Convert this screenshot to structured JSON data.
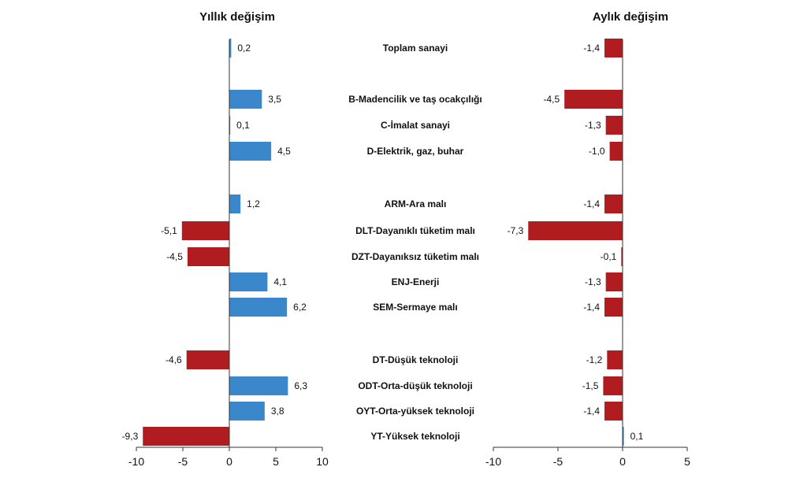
{
  "chart_data": [
    {
      "type": "bar",
      "orientation": "horizontal",
      "title": "Yıllık değişim",
      "categories": [
        "Toplam sanayi",
        "B-Madencilik ve taş ocakçılığı",
        "C-İmalat sanayi",
        "D-Elektrik, gaz, buhar",
        "ARM-Ara malı",
        "DLT-Dayanıklı tüketim malı",
        "DZT-Dayanıksız tüketim malı",
        "ENJ-Enerji",
        "SEM-Sermaye malı",
        "DT-Düşük teknoloji",
        "ODT-Orta-düşük teknoloji",
        "OYT-Orta-yüksek teknoloji",
        "YT-Yüksek teknoloji"
      ],
      "values": [
        0.2,
        3.5,
        0.1,
        4.5,
        1.2,
        -5.1,
        -4.5,
        4.1,
        6.2,
        -4.6,
        6.3,
        3.8,
        -9.3
      ],
      "value_labels": [
        "0,2",
        "3,5",
        "0,1",
        "4,5",
        "1,2",
        "-5,1",
        "-4,5",
        "4,1",
        "6,2",
        "-4,6",
        "6,3",
        "3,8",
        "-9,3"
      ],
      "xlim": [
        -10,
        10
      ],
      "xticks": [
        -10,
        -5,
        0,
        5,
        10
      ],
      "xtick_labels": [
        "-10",
        "-5",
        "0",
        "5",
        "10"
      ],
      "colors": {
        "positive": "#3a87cc",
        "negative": "#b01c1f"
      }
    },
    {
      "type": "bar",
      "orientation": "horizontal",
      "title": "Aylık değişim",
      "categories": [
        "Toplam sanayi",
        "B-Madencilik ve taş ocakçılığı",
        "C-İmalat sanayi",
        "D-Elektrik, gaz, buhar",
        "ARM-Ara malı",
        "DLT-Dayanıklı tüketim malı",
        "DZT-Dayanıksız tüketim malı",
        "ENJ-Enerji",
        "SEM-Sermaye malı",
        "DT-Düşük teknoloji",
        "ODT-Orta-düşük teknoloji",
        "OYT-Orta-yüksek teknoloji",
        "YT-Yüksek teknoloji"
      ],
      "values": [
        -1.4,
        -4.5,
        -1.3,
        -1.0,
        -1.4,
        -7.3,
        -0.1,
        -1.3,
        -1.4,
        -1.2,
        -1.5,
        -1.4,
        0.1
      ],
      "value_labels": [
        "-1,4",
        "-4,5",
        "-1,3",
        "-1,0",
        "-1,4",
        "-7,3",
        "-0,1",
        "-1,3",
        "-1,4",
        "-1,2",
        "-1,5",
        "-1,4",
        "0,1"
      ],
      "xlim": [
        -10,
        5
      ],
      "xticks": [
        -10,
        -5,
        0,
        5
      ],
      "xtick_labels": [
        "-10",
        "-5",
        "0",
        "5"
      ],
      "colors": {
        "positive": "#3a87cc",
        "negative": "#b01c1f"
      }
    }
  ]
}
